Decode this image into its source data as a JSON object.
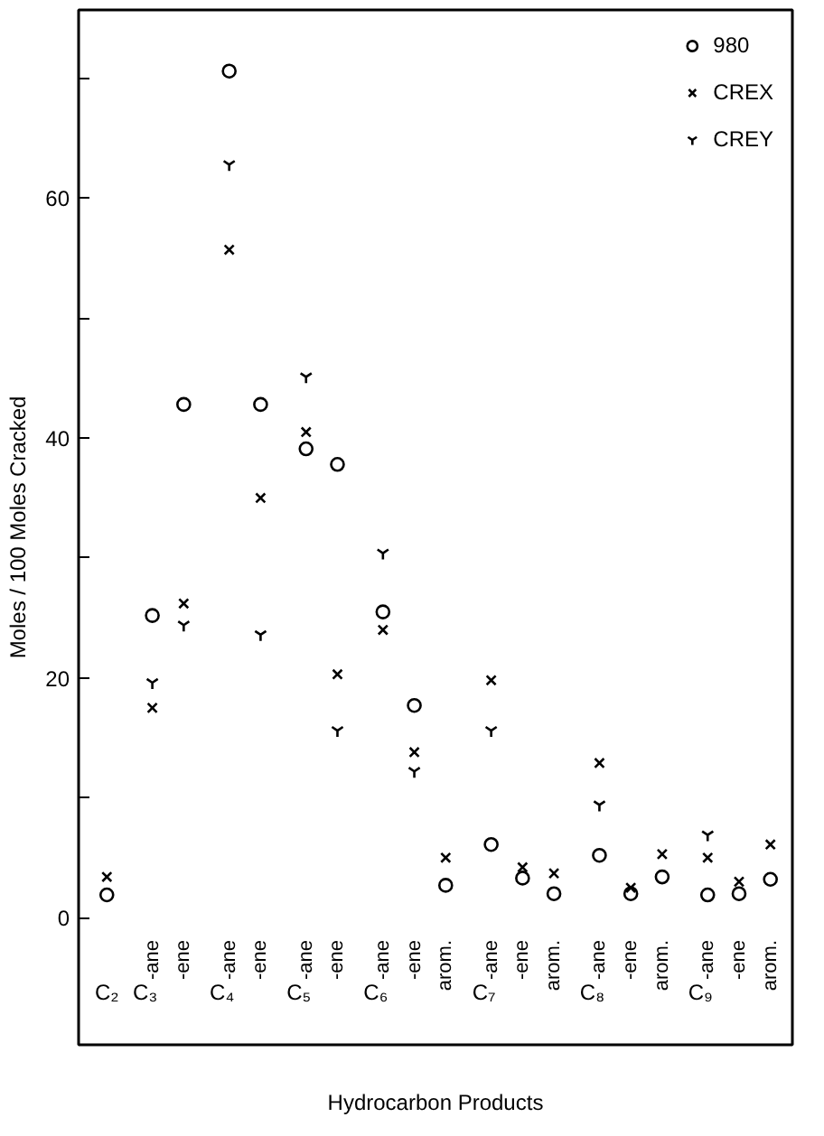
{
  "chart_data": {
    "type": "scatter",
    "xlabel": "Hydrocarbon Products",
    "ylabel": "Moles / 100 Moles Cracked",
    "categories": [
      "C₂",
      "-ane",
      "-ene",
      "-ane",
      "-ene",
      "-ane",
      "-ene",
      "-ane",
      "-ene",
      "arom.",
      "-ane",
      "-ene",
      "arom.",
      "-ane",
      "-ene",
      "arom.",
      "-ane",
      "-ene",
      "arom."
    ],
    "annotations": [
      "C₃",
      "C₄",
      "C₅",
      "C₆",
      "C₇",
      "C₈",
      "C₉"
    ],
    "ylim": [
      -10.6,
      75.7
    ],
    "yticks": [
      0,
      {
        "value": 10,
        "label": null
      },
      20,
      {
        "value": 30,
        "label": null
      },
      40,
      {
        "value": 50,
        "label": null
      },
      60,
      {
        "value": 70,
        "label": null
      }
    ],
    "grid": false,
    "legend": "top right",
    "series": [
      {
        "name": "980",
        "color": "#000000",
        "marker": "circle",
        "values": [
          1.9,
          25.2,
          42.8,
          70.6,
          42.8,
          39.1,
          37.8,
          25.5,
          17.7,
          2.7,
          6.1,
          3.3,
          2.0,
          5.2,
          2.0,
          3.4,
          1.9,
          2.0,
          3.2
        ]
      },
      {
        "name": "CREX",
        "color": "#000000",
        "marker": "cross",
        "values": [
          3.4,
          17.5,
          26.2,
          55.7,
          35.0,
          40.5,
          20.3,
          24.0,
          13.8,
          5.0,
          19.8,
          4.2,
          3.7,
          12.9,
          2.5,
          5.3,
          5.0,
          3.0,
          6.1
        ]
      },
      {
        "name": "CREY",
        "color": "#000000",
        "values": [
          null,
          19.6,
          24.4,
          62.8,
          23.6,
          45.1,
          15.6,
          30.4,
          12.2,
          null,
          15.6,
          null,
          null,
          9.4,
          null,
          null,
          6.9,
          null,
          null
        ]
      }
    ]
  }
}
